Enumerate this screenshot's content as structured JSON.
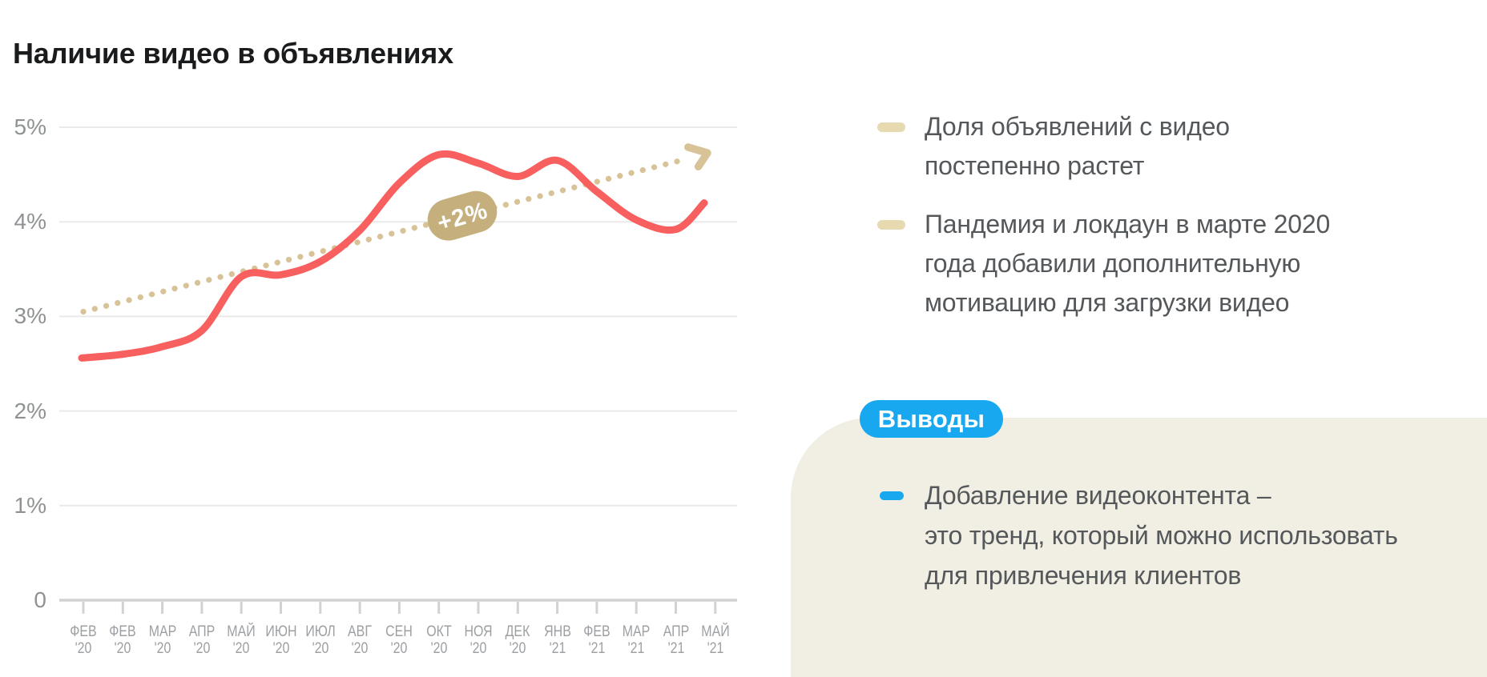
{
  "title": "Наличие видео в объявлениях",
  "chart_data": {
    "type": "line",
    "title": "Наличие видео в объявлениях",
    "unit": "%",
    "grid": true,
    "ylim": [
      0,
      5.4
    ],
    "x_ticks": [
      {
        "month": "ФЕВ",
        "year": "'20"
      },
      {
        "month": "ФЕВ",
        "year": "'20"
      },
      {
        "month": "МАР",
        "year": "'20"
      },
      {
        "month": "АПР",
        "year": "'20"
      },
      {
        "month": "МАЙ",
        "year": "'20"
      },
      {
        "month": "ИЮН",
        "year": "'20"
      },
      {
        "month": "ИЮЛ",
        "year": "'20"
      },
      {
        "month": "АВГ",
        "year": "'20"
      },
      {
        "month": "СЕН",
        "year": "'20"
      },
      {
        "month": "ОКТ",
        "year": "'20"
      },
      {
        "month": "НОЯ",
        "year": "'20"
      },
      {
        "month": "ДЕК",
        "year": "'20"
      },
      {
        "month": "ЯНВ",
        "year": "'21"
      },
      {
        "month": "ФЕВ",
        "year": "'21"
      },
      {
        "month": "МАР",
        "year": "'21"
      },
      {
        "month": "АПР",
        "year": "'21"
      },
      {
        "month": "МАЙ",
        "year": "'21"
      }
    ],
    "y_ticks": [
      {
        "label": "5%",
        "value": 5
      },
      {
        "label": "4%",
        "value": 4
      },
      {
        "label": "3%",
        "value": 3
      },
      {
        "label": "2%",
        "value": 2
      },
      {
        "label": "1%",
        "value": 1
      },
      {
        "label": "0",
        "value": 0
      }
    ],
    "series": [
      {
        "name": "Доля объявлений с видео",
        "color": "#f7605e",
        "values": [
          2.56,
          2.6,
          2.68,
          2.85,
          3.42,
          3.44,
          3.58,
          3.91,
          4.41,
          4.71,
          4.62,
          4.48,
          4.65,
          4.32,
          4.02,
          3.92,
          4.2
        ]
      }
    ],
    "trend": {
      "label": "+2%",
      "style": "dotted-arrow",
      "start_value": 3.05,
      "end_value": 4.72,
      "dot_color": "#d8c398",
      "badge_color": "#c5b07d",
      "badge_text_color": "#ffffff"
    }
  },
  "insights": [
    {
      "lines": [
        "Доля объявлений с видео",
        "постепенно растет"
      ]
    },
    {
      "lines": [
        "Пандемия и локдаун в марте 2020",
        "года добавили дополнительную",
        "мотивацию для загрузки видео"
      ]
    }
  ],
  "conclusions": {
    "badge_label": "Выводы",
    "items": [
      {
        "lines": [
          "Добавление видеоконтента –",
          "это тренд, который можно использовать",
          "для привлечения клиентов"
        ]
      }
    ]
  },
  "colors": {
    "background": "#ffffff",
    "panel": "#f1eee3",
    "accent_blue": "#18a8f0",
    "accent_red": "#f7605e",
    "accent_tan": "#e7d9b0",
    "text_dark": "#1a1b1d",
    "text_body": "#55585b",
    "axis_label": "#8f9294",
    "gridline": "#e9e9e9",
    "axis_line": "#d2d2d2"
  }
}
